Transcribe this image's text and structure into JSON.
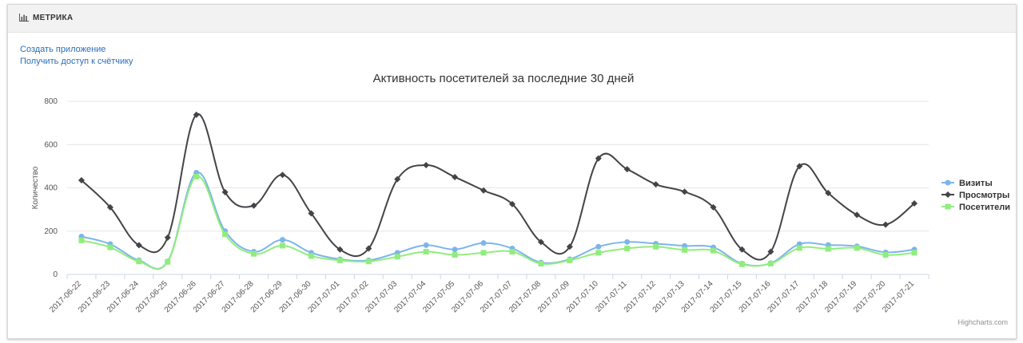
{
  "header": {
    "title": "МЕТРИКА",
    "icon": "bar-chart-icon"
  },
  "links": {
    "create_app": "Создать приложение",
    "get_counter_access": "Получить доступ к счётчику"
  },
  "credits": "Highcharts.com",
  "chart_data": {
    "type": "line",
    "title": "Активность посетителей за последние 30 дней",
    "xlabel": "",
    "ylabel": "Количество",
    "ylim": [
      0,
      800
    ],
    "yticks": [
      0,
      200,
      400,
      600,
      800
    ],
    "grid": true,
    "legend_position": "right",
    "categories": [
      "2017-06-22",
      "2017-06-23",
      "2017-06-24",
      "2017-06-25",
      "2017-06-26",
      "2017-06-27",
      "2017-06-28",
      "2017-06-29",
      "2017-06-30",
      "2017-07-01",
      "2017-07-02",
      "2017-07-03",
      "2017-07-04",
      "2017-07-05",
      "2017-07-06",
      "2017-07-07",
      "2017-07-08",
      "2017-07-09",
      "2017-07-10",
      "2017-07-11",
      "2017-07-12",
      "2017-07-13",
      "2017-07-14",
      "2017-07-15",
      "2017-07-16",
      "2017-07-17",
      "2017-07-18",
      "2017-07-19",
      "2017-07-20",
      "2017-07-21"
    ],
    "series": [
      {
        "name": "Визиты",
        "color": "#7cb5ec",
        "marker": "circle",
        "values": [
          175,
          140,
          65,
          60,
          470,
          200,
          105,
          160,
          100,
          70,
          65,
          100,
          135,
          115,
          145,
          120,
          55,
          70,
          128,
          150,
          142,
          132,
          125,
          50,
          52,
          140,
          136,
          130,
          102,
          115
        ]
      },
      {
        "name": "Просмотры",
        "color": "#434348",
        "marker": "diamond",
        "values": [
          435,
          310,
          135,
          170,
          738,
          380,
          318,
          460,
          282,
          115,
          120,
          440,
          505,
          450,
          388,
          325,
          150,
          128,
          536,
          486,
          416,
          382,
          310,
          115,
          105,
          500,
          376,
          275,
          230,
          328
        ]
      },
      {
        "name": "Посетители",
        "color": "#90ed7d",
        "marker": "square",
        "values": [
          157,
          125,
          60,
          58,
          452,
          185,
          95,
          133,
          85,
          65,
          60,
          82,
          105,
          90,
          100,
          105,
          50,
          65,
          100,
          120,
          128,
          113,
          110,
          47,
          50,
          122,
          118,
          122,
          90,
          100
        ]
      }
    ]
  }
}
